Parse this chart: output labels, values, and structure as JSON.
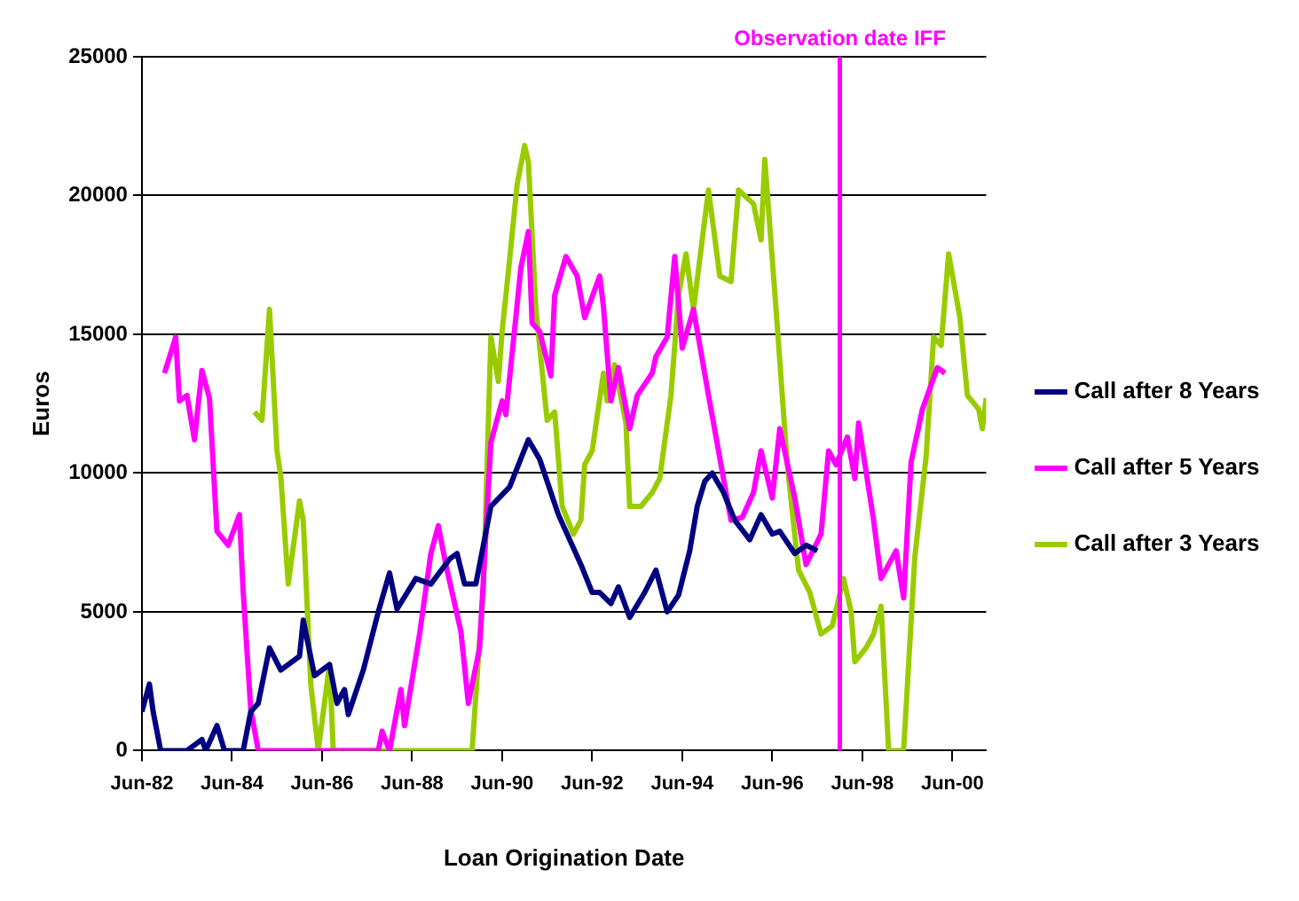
{
  "chart_data": {
    "type": "line",
    "xlabel": "Loan Origination Date",
    "ylabel": "Euros",
    "xlim": [
      "1982-06",
      "2001-03"
    ],
    "xticks": [
      {
        "value": "1982-06",
        "label": "Jun-82"
      },
      {
        "value": "1984-06",
        "label": "Jun-84"
      },
      {
        "value": "1986-06",
        "label": "Jun-86"
      },
      {
        "value": "1988-06",
        "label": "Jun-88"
      },
      {
        "value": "1990-06",
        "label": "Jun-90"
      },
      {
        "value": "1992-06",
        "label": "Jun-92"
      },
      {
        "value": "1994-06",
        "label": "Jun-94"
      },
      {
        "value": "1996-06",
        "label": "Jun-96"
      },
      {
        "value": "1998-06",
        "label": "Jun-98"
      },
      {
        "value": "2000-06",
        "label": "Jun-00"
      }
    ],
    "ylim": [
      0,
      25000
    ],
    "yticks": [
      0,
      5000,
      10000,
      15000,
      20000,
      25000
    ],
    "grid": "y",
    "legend": "right",
    "marker": "none",
    "line_style": "solid",
    "ref_lines": [
      {
        "axis": "x",
        "value": "1997-12",
        "label": "Observation date IFF",
        "color": "#ff00ff"
      }
    ],
    "series": [
      {
        "name": "Call after 8 Years",
        "color": "#000080",
        "x": [
          "1982-06",
          "1982-08",
          "1982-09",
          "1982-11",
          "1983-06",
          "1983-10",
          "1983-11",
          "1984-02",
          "1984-04",
          "1984-09",
          "1984-11",
          "1985-01",
          "1985-04",
          "1985-07",
          "1985-12",
          "1986-01",
          "1986-04",
          "1986-08",
          "1986-10",
          "1986-12",
          "1987-01",
          "1987-05",
          "1987-09",
          "1987-12",
          "1988-02",
          "1988-07",
          "1988-11",
          "1989-04",
          "1989-06",
          "1989-08",
          "1989-11",
          "1990-03",
          "1990-08",
          "1991-01",
          "1991-04",
          "1991-09",
          "1992-03",
          "1992-06",
          "1992-08",
          "1992-11",
          "1993-01",
          "1993-04",
          "1993-08",
          "1993-11",
          "1994-02",
          "1994-05",
          "1994-08",
          "1994-10",
          "1994-12",
          "1995-02",
          "1995-05",
          "1995-08",
          "1995-12",
          "1996-03",
          "1996-06",
          "1996-08",
          "1996-12",
          "1997-03",
          "1997-06"
        ],
        "values": [
          1400,
          2400,
          1400,
          0,
          0,
          400,
          0,
          900,
          0,
          0,
          1400,
          1700,
          3700,
          2900,
          3400,
          4700,
          2700,
          3100,
          1700,
          2200,
          1300,
          2900,
          5000,
          6400,
          5100,
          6200,
          6000,
          6900,
          7100,
          6000,
          6000,
          8800,
          9500,
          11200,
          10500,
          8500,
          6700,
          5700,
          5700,
          5300,
          5900,
          4800,
          5700,
          6500,
          5000,
          5600,
          7200,
          8800,
          9700,
          10000,
          9300,
          8300,
          7600,
          8500,
          7800,
          7900,
          7100,
          7400,
          7200
        ]
      },
      {
        "name": "Call after 5 Years",
        "color": "#ff00ff",
        "x": [
          "1982-12",
          "1983-03",
          "1983-04",
          "1983-06",
          "1983-08",
          "1983-10",
          "1983-12",
          "1984-02",
          "1984-05",
          "1984-08",
          "1984-09",
          "1984-11",
          "1985-01",
          "1987-09",
          "1987-10",
          "1987-12",
          "1988-03",
          "1988-04",
          "1988-08",
          "1988-11",
          "1989-01",
          "1989-03",
          "1989-07",
          "1989-09",
          "1989-12",
          "1990-03",
          "1990-06",
          "1990-07",
          "1990-11",
          "1991-01",
          "1991-02",
          "1991-04",
          "1991-07",
          "1991-08",
          "1991-11",
          "1992-02",
          "1992-04",
          "1992-08",
          "1992-09",
          "1992-11",
          "1993-01",
          "1993-04",
          "1993-06",
          "1993-10",
          "1993-11",
          "1994-02",
          "1994-04",
          "1994-06",
          "1994-09",
          "1995-01",
          "1995-05",
          "1995-07",
          "1995-10",
          "1996-01",
          "1996-03",
          "1996-06",
          "1996-08",
          "1996-12",
          "1997-03",
          "1997-07",
          "1997-09",
          "1997-11",
          "1998-02",
          "1998-04",
          "1998-05",
          "1998-09",
          "1998-11",
          "1999-03",
          "1999-05",
          "1999-07",
          "1999-10",
          "2000-02",
          "2000-04"
        ],
        "values": [
          13600,
          14900,
          12600,
          12800,
          11200,
          13700,
          12700,
          7900,
          7400,
          8500,
          5700,
          1500,
          0,
          0,
          700,
          0,
          2200,
          900,
          4200,
          7100,
          8100,
          6700,
          4300,
          1700,
          3700,
          11100,
          12600,
          12100,
          17400,
          18700,
          15400,
          15100,
          13500,
          16400,
          17800,
          17100,
          15600,
          17100,
          16000,
          12600,
          13800,
          11600,
          12800,
          13600,
          14200,
          14900,
          17800,
          14500,
          15900,
          12800,
          9800,
          8300,
          8400,
          9300,
          10800,
          9100,
          11600,
          9100,
          6700,
          7800,
          10800,
          10300,
          11300,
          9800,
          11800,
          8300,
          6200,
          7200,
          5500,
          10400,
          12300,
          13800,
          13600
        ]
      },
      {
        "name": "Call after 3 Years",
        "color": "#99cc00",
        "x": [
          "1984-12",
          "1985-02",
          "1985-04",
          "1985-06",
          "1985-07",
          "1985-09",
          "1985-12",
          "1986-01",
          "1986-03",
          "1986-05",
          "1986-08",
          "1986-09",
          "1989-10",
          "1989-12",
          "1990-01",
          "1990-03",
          "1990-05",
          "1990-06",
          "1990-08",
          "1990-10",
          "1990-12",
          "1991-01",
          "1991-03",
          "1991-06",
          "1991-08",
          "1991-10",
          "1992-01",
          "1992-03",
          "1992-04",
          "1992-06",
          "1992-09",
          "1992-10",
          "1992-12",
          "1993-03",
          "1993-04",
          "1993-07",
          "1993-10",
          "1993-12",
          "1994-03",
          "1994-05",
          "1994-07",
          "1994-09",
          "1995-01",
          "1995-04",
          "1995-07",
          "1995-09",
          "1996-01",
          "1996-03",
          "1996-04",
          "1996-07",
          "1996-10",
          "1997-01",
          "1997-04",
          "1997-07",
          "1997-10",
          "1998-01",
          "1998-03",
          "1998-04",
          "1998-07",
          "1998-09",
          "1998-11",
          "1999-01",
          "1999-05",
          "1999-08",
          "1999-11",
          "2000-01",
          "2000-03",
          "2000-05",
          "2000-08",
          "2000-10",
          "2001-01",
          "2001-02",
          "2001-03"
        ],
        "values": [
          12200,
          11900,
          15900,
          10800,
          9900,
          6000,
          9000,
          8300,
          2400,
          0,
          3100,
          0,
          0,
          4000,
          5700,
          14900,
          13300,
          15100,
          17700,
          20400,
          21800,
          21200,
          15900,
          11900,
          12200,
          8800,
          7800,
          8300,
          10300,
          10800,
          13600,
          12600,
          13900,
          11800,
          8800,
          8800,
          9300,
          9800,
          12800,
          16400,
          17900,
          15900,
          20200,
          17100,
          16900,
          20200,
          19700,
          18400,
          21300,
          15900,
          10300,
          6500,
          5700,
          4200,
          4500,
          6200,
          5000,
          3200,
          3700,
          4200,
          5200,
          0,
          0,
          7000,
          10600,
          14900,
          14600,
          17900,
          15600,
          12800,
          12300,
          11600,
          12700
        ]
      }
    ]
  }
}
